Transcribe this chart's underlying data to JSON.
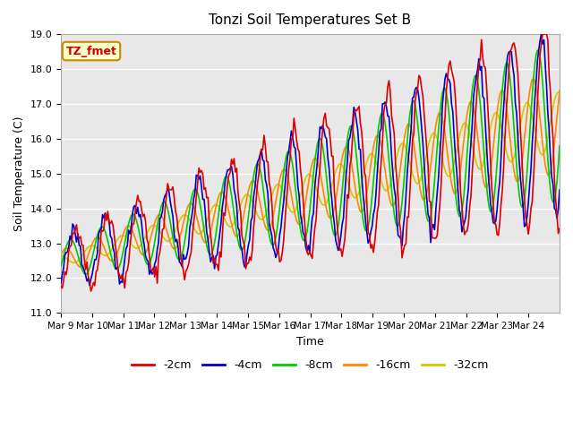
{
  "title": "Tonzi Soil Temperatures Set B",
  "xlabel": "Time",
  "ylabel": "Soil Temperature (C)",
  "ylim": [
    11.0,
    19.0
  ],
  "yticks": [
    11.0,
    12.0,
    13.0,
    14.0,
    15.0,
    16.0,
    17.0,
    18.0,
    19.0
  ],
  "x_labels": [
    "Mar 9",
    "Mar 10",
    "Mar 11",
    "Mar 12",
    "Mar 13",
    "Mar 14",
    "Mar 15",
    "Mar 16",
    "Mar 17",
    "Mar 18",
    "Mar 19",
    "Mar 20",
    "Mar 21",
    "Mar 22",
    "Mar 23",
    "Mar 24"
  ],
  "series_labels": [
    "-2cm",
    "-4cm",
    "-8cm",
    "-16cm",
    "-32cm"
  ],
  "series_colors": [
    "#dd0000",
    "#0000cc",
    "#00cc00",
    "#ff8800",
    "#cccc00"
  ],
  "annotation_text": "TZ_fmet",
  "annotation_color": "#cc0000",
  "annotation_bg": "#ffffcc",
  "annotation_border": "#cc8800",
  "bg_color": "#e8e8e8",
  "n_days": 16
}
